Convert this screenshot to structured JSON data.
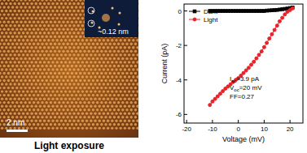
{
  "image_panel": {
    "fft_label": "~0.12 nm",
    "scale_bar": "2 nm",
    "caption": "Light exposure"
  },
  "chart_data": {
    "type": "line",
    "x_label": "Voltage (mV)",
    "y_label": "Current (pA)",
    "xlim": [
      -21,
      25
    ],
    "xticks": [
      -20,
      -10,
      0,
      10,
      20
    ],
    "ylim": [
      -6.5,
      0.4
    ],
    "yticks": [
      -6,
      -4,
      -2,
      0
    ],
    "legend": "top-left",
    "x": [
      -11,
      -10,
      -9,
      -8,
      -7,
      -6,
      -5,
      -4,
      -3,
      -2,
      -1,
      0,
      1,
      2,
      3,
      4,
      5,
      6,
      7,
      8,
      9,
      10,
      11,
      12,
      13,
      14,
      15,
      16,
      17,
      18,
      19,
      20,
      21
    ],
    "series": [
      {
        "name": "Dark",
        "color": "#000000",
        "marker": "square",
        "values": [
          0,
          0,
          0,
          0,
          0,
          0,
          0,
          0,
          0,
          0,
          0,
          0,
          0,
          0,
          0,
          0,
          0,
          0,
          0,
          0,
          0,
          0,
          0.02,
          0.03,
          0.04,
          0.05,
          0.06,
          0.08,
          0.1,
          0.12,
          0.14,
          0.17,
          0.2
        ]
      },
      {
        "name": "Light",
        "color": "#e8242a",
        "marker": "circle",
        "values": [
          -5.45,
          -5.25,
          -5.1,
          -4.95,
          -4.8,
          -4.65,
          -4.5,
          -4.38,
          -4.25,
          -4.12,
          -4.0,
          -3.9,
          -3.75,
          -3.6,
          -3.45,
          -3.3,
          -3.12,
          -2.95,
          -2.75,
          -2.55,
          -2.35,
          -2.1,
          -1.85,
          -1.6,
          -1.35,
          -1.1,
          -0.85,
          -0.6,
          -0.4,
          -0.2,
          -0.05,
          0.05,
          0.15
        ]
      }
    ],
    "annotations": [
      {
        "text": "I",
        "sub": "sc",
        "rest": "=3.9 pA"
      },
      {
        "text": "V",
        "sub": "oc",
        "rest": "=20 mV"
      },
      {
        "text": "FF=0.27"
      }
    ]
  }
}
